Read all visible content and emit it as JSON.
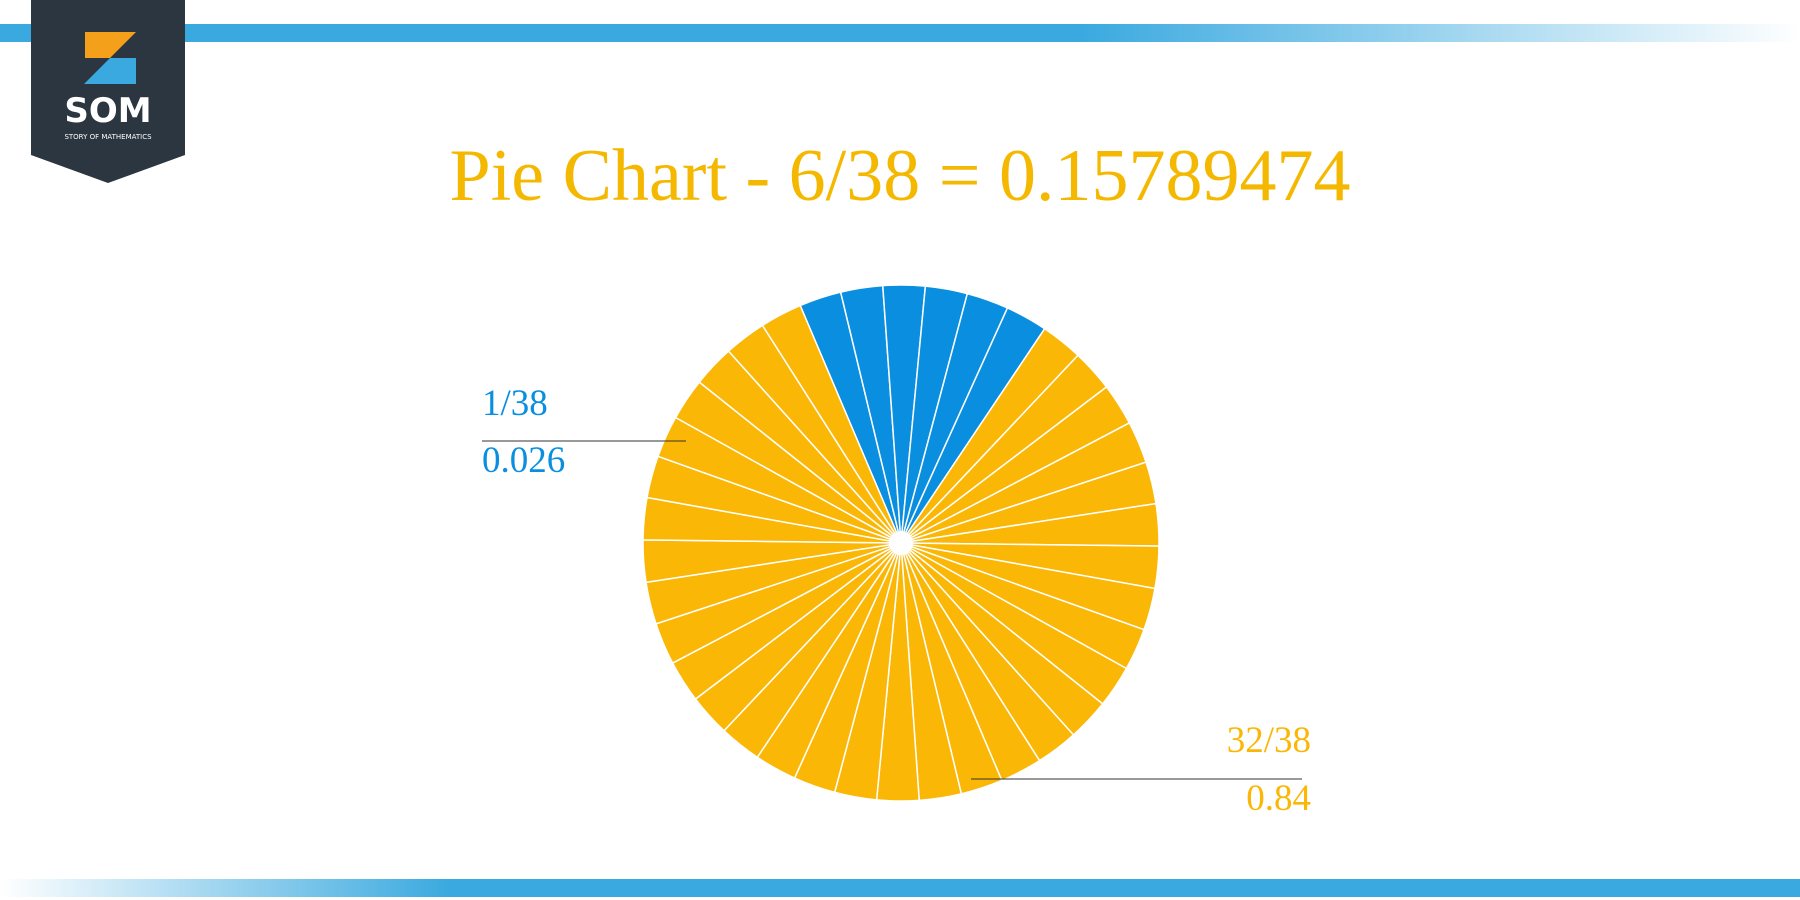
{
  "logo": {
    "name": "SOM",
    "tagline": "STORY OF MATHEMATICS"
  },
  "chart_data": {
    "type": "pie",
    "title": "Pie Chart - 6/38 = 0.15789474",
    "values": [
      1,
      1,
      1,
      1,
      1,
      1,
      1,
      1,
      1,
      1,
      1,
      1,
      1,
      1,
      1,
      1,
      1,
      1,
      1,
      1,
      1,
      1,
      1,
      1,
      1,
      1,
      1,
      1,
      1,
      1,
      1,
      1,
      1,
      1,
      1,
      1,
      1,
      1
    ],
    "colors": [
      "#0a8fe0",
      "#0a8fe0",
      "#0a8fe0",
      "#0a8fe0",
      "#0a8fe0",
      "#0a8fe0",
      "#fbb706",
      "#fbb706",
      "#fbb706",
      "#fbb706",
      "#fbb706",
      "#fbb706",
      "#fbb706",
      "#fbb706",
      "#fbb706",
      "#fbb706",
      "#fbb706",
      "#fbb706",
      "#fbb706",
      "#fbb706",
      "#fbb706",
      "#fbb706",
      "#fbb706",
      "#fbb706",
      "#fbb706",
      "#fbb706",
      "#fbb706",
      "#fbb706",
      "#fbb706",
      "#fbb706",
      "#fbb706",
      "#fbb706",
      "#fbb706",
      "#fbb706",
      "#fbb706",
      "#fbb706",
      "#fbb706",
      "#fbb706"
    ],
    "annotations": [
      {
        "fraction": "1/38",
        "decimal": 0.026,
        "color": "#0a8fe0"
      },
      {
        "fraction": "32/38",
        "decimal": 0.84,
        "color": "#fbb706"
      }
    ]
  }
}
